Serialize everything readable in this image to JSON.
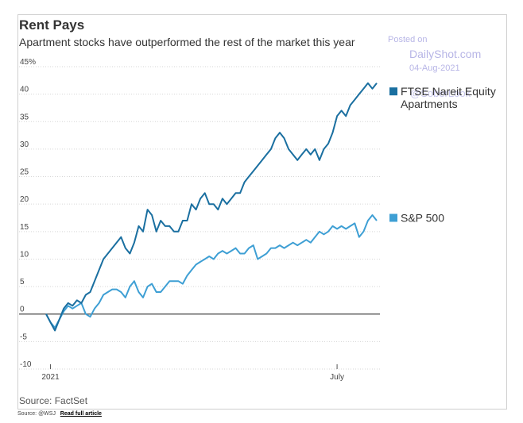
{
  "chart_data": {
    "type": "line",
    "title": "Rent Pays",
    "subtitle": "Apartment stocks have outperformed the rest of the market this year",
    "xlabel": "",
    "ylabel": "",
    "x_tick_labels": [
      "2021",
      "July"
    ],
    "y_tick_labels": [
      "45%",
      "40",
      "35",
      "30",
      "25",
      "20",
      "15",
      "10",
      "5",
      "0",
      "-5",
      "-10"
    ],
    "ylim": [
      -10,
      45
    ],
    "grid": "horizontal",
    "legend": "right",
    "source": "Source: FactSet",
    "series": [
      {
        "name": "FTSE Nareit Equity Apartments",
        "color": "#1a6fa0",
        "x": [
          0,
          2,
          4,
          6,
          8,
          10,
          12,
          14,
          16,
          18,
          20,
          22,
          24,
          26,
          28,
          30,
          32,
          34,
          36,
          38,
          40,
          42,
          44,
          46,
          48,
          50,
          52,
          54,
          56,
          58,
          60,
          62,
          64,
          66,
          68,
          70,
          72,
          74,
          76,
          78,
          80,
          82,
          84,
          86,
          88,
          90,
          92,
          94,
          96,
          98,
          100,
          102,
          104,
          106,
          108,
          110,
          112,
          114,
          116,
          118,
          120,
          122,
          124,
          126,
          128,
          130,
          132,
          134,
          136,
          138,
          140,
          142,
          144,
          146,
          148,
          150
        ],
        "values": [
          0,
          -1.5,
          -3,
          -1,
          1,
          2,
          1.5,
          2.5,
          2,
          3.5,
          4,
          6,
          8,
          10,
          11,
          12,
          13,
          14,
          12,
          11,
          13,
          16,
          15,
          19,
          18,
          15,
          17,
          16,
          16,
          15,
          15,
          17,
          17,
          20,
          19,
          21,
          22,
          20,
          20,
          19,
          21,
          20,
          21,
          22,
          22,
          24,
          25,
          26,
          27,
          28,
          29,
          30,
          32,
          33,
          32,
          30,
          29,
          28,
          29,
          30,
          29,
          30,
          28,
          30,
          31,
          33,
          36,
          37,
          36,
          38,
          39,
          40,
          41,
          42,
          41,
          42
        ]
      },
      {
        "name": "S&P 500",
        "color": "#3e9fd4",
        "x": [
          0,
          2,
          4,
          6,
          8,
          10,
          12,
          14,
          16,
          18,
          20,
          22,
          24,
          26,
          28,
          30,
          32,
          34,
          36,
          38,
          40,
          42,
          44,
          46,
          48,
          50,
          52,
          54,
          56,
          58,
          60,
          62,
          64,
          66,
          68,
          70,
          72,
          74,
          76,
          78,
          80,
          82,
          84,
          86,
          88,
          90,
          92,
          94,
          96,
          98,
          100,
          102,
          104,
          106,
          108,
          110,
          112,
          114,
          116,
          118,
          120,
          122,
          124,
          126,
          128,
          130,
          132,
          134,
          136,
          138,
          140,
          142,
          144,
          146,
          148,
          150
        ],
        "values": [
          0,
          -1.5,
          -2.5,
          -1,
          0.5,
          1.5,
          1,
          1.5,
          2,
          0,
          -0.5,
          1,
          2,
          3.5,
          4,
          4.5,
          4.5,
          4,
          3,
          5,
          6,
          4,
          3,
          5,
          5.5,
          4,
          4,
          5,
          6,
          6,
          6,
          5.5,
          7,
          8,
          9,
          9.5,
          10,
          10.5,
          10,
          11,
          11.5,
          11,
          11.5,
          12,
          11,
          11,
          12,
          12.5,
          10,
          10.5,
          11,
          12,
          12,
          12.5,
          12,
          12.5,
          13,
          12.5,
          13,
          13.5,
          13,
          14,
          15,
          14.5,
          15,
          16,
          15.5,
          16,
          15.5,
          16,
          16.5,
          14,
          15,
          17,
          18,
          17
        ]
      }
    ]
  },
  "watermark": {
    "line1": "Posted on",
    "line2": "DailyShot.com",
    "line3": "04-Aug-2021",
    "line4": "@SoberLook"
  },
  "credit": {
    "source": "Source: @WSJ",
    "link": "Read full article"
  }
}
